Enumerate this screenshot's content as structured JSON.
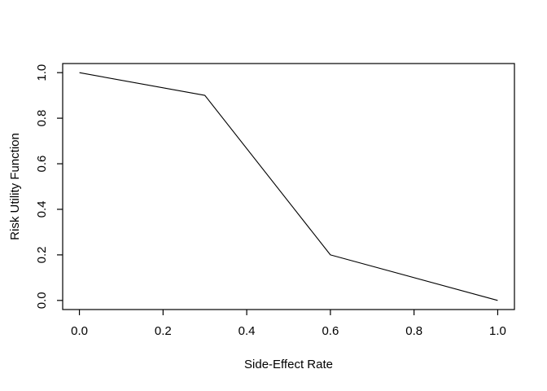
{
  "chart_data": {
    "type": "line",
    "title": "",
    "xlabel": "Side-Effect Rate",
    "ylabel": "Risk Utility Function",
    "x": [
      0.0,
      0.3,
      0.6,
      1.0
    ],
    "y": [
      1.0,
      0.9,
      0.2,
      0.0
    ],
    "xlim": [
      0.0,
      1.0
    ],
    "ylim": [
      0.0,
      1.0
    ],
    "x_ticks": [
      {
        "value": 0.0,
        "label": "0.0"
      },
      {
        "value": 0.2,
        "label": "0.2"
      },
      {
        "value": 0.4,
        "label": "0.4"
      },
      {
        "value": 0.6,
        "label": "0.6"
      },
      {
        "value": 0.8,
        "label": "0.8"
      },
      {
        "value": 1.0,
        "label": "1.0"
      }
    ],
    "y_ticks": [
      {
        "value": 0.0,
        "label": "0.0"
      },
      {
        "value": 0.2,
        "label": "0.2"
      },
      {
        "value": 0.4,
        "label": "0.4"
      },
      {
        "value": 0.6,
        "label": "0.6"
      },
      {
        "value": 0.8,
        "label": "0.8"
      },
      {
        "value": 1.0,
        "label": "1.0"
      }
    ],
    "grid": false,
    "legend": null,
    "line_color": "#000000",
    "axis_color": "#000000",
    "background": "#ffffff"
  }
}
